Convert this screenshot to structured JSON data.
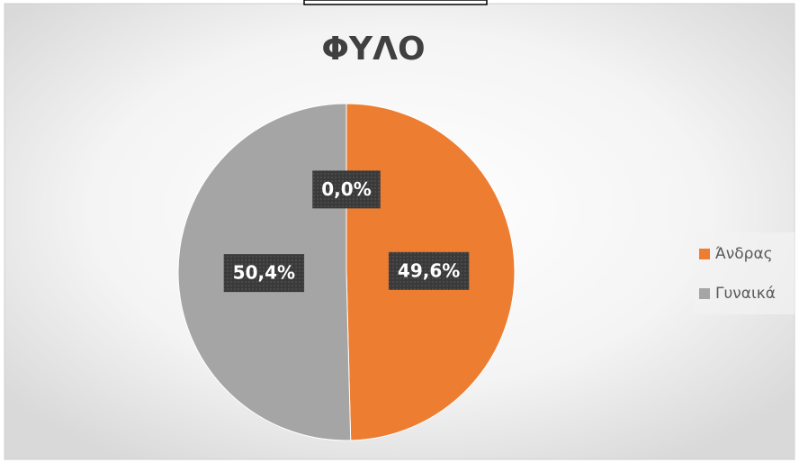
{
  "chart_data": {
    "type": "pie",
    "title": "ΦΥΛΟ",
    "categories": [
      "Άνδρας",
      "Γυναικά",
      null
    ],
    "values": [
      49.6,
      50.4,
      0
    ],
    "value_labels": [
      "49,6%",
      "50,4%",
      "0,0%"
    ],
    "colors": [
      "#ed7d31",
      "#a5a5a5",
      "#5b9bd5"
    ],
    "legend": "right"
  }
}
